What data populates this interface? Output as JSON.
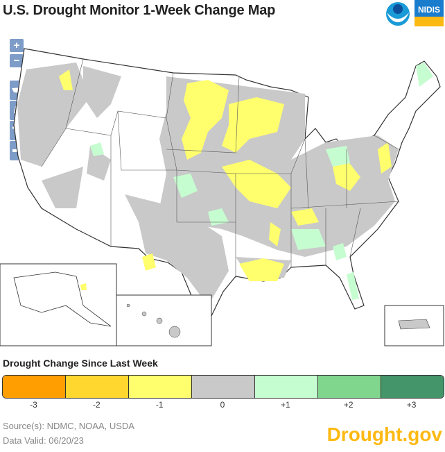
{
  "title": "U.S. Drought Monitor 1-Week Change Map",
  "logos": {
    "noaa": "NOAA",
    "nidis": "NIDIS"
  },
  "controls": {
    "zoom_in": "+",
    "zoom_out": "−",
    "views": [
      "conus-view-icon",
      "alaska-view-icon",
      "hawaii-view-icon",
      "puerto-rico-view-icon"
    ]
  },
  "legend": {
    "title": "Drought Change Since Last Week",
    "items": [
      {
        "label": "-3",
        "color": "#ff9e00"
      },
      {
        "label": "-2",
        "color": "#ffd72e"
      },
      {
        "label": "-1",
        "color": "#ffff6e"
      },
      {
        "label": "0",
        "color": "#c9c9c9"
      },
      {
        "label": "+1",
        "color": "#c6fdd0"
      },
      {
        "label": "+2",
        "color": "#80d68d"
      },
      {
        "label": "+3",
        "color": "#44956a"
      }
    ]
  },
  "footer": {
    "source": "Source(s): NDMC, NOAA, USDA",
    "valid": "Data Valid: 06/20/23",
    "brand": "Drought.gov"
  }
}
